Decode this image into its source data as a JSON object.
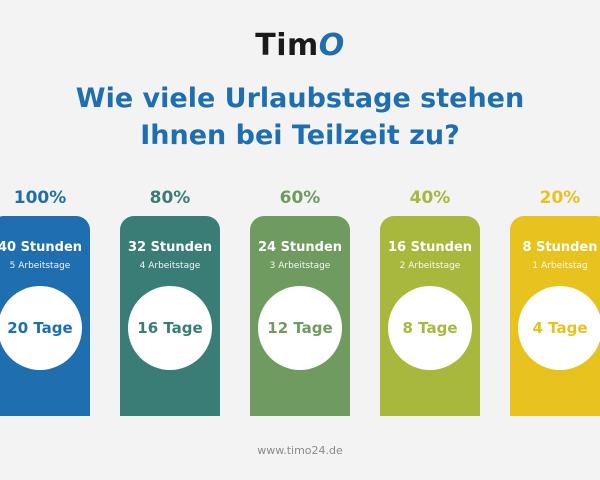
{
  "brand": {
    "logo_prefix": "Tim",
    "logo_suffix": "O"
  },
  "headline": {
    "line1": "Wie viele Urlaubstage stehen",
    "line2": "Ihnen bei Teilzeit zu?"
  },
  "colors": {
    "blue": "#1f6fb0",
    "teal": "#3a7d77",
    "olive": "#6f9b60",
    "lime": "#a8b83c",
    "yellow": "#e8c21e"
  },
  "columns": [
    {
      "percent": "100%",
      "hours": "40 Stunden",
      "workdays": "5 Arbeitstage",
      "vacation": "20 Tage",
      "color": "#1f6fb0"
    },
    {
      "percent": "80%",
      "hours": "32 Stunden",
      "workdays": "4 Arbeitstage",
      "vacation": "16 Tage",
      "color": "#3a7d77"
    },
    {
      "percent": "60%",
      "hours": "24 Stunden",
      "workdays": "3 Arbeitstage",
      "vacation": "12 Tage",
      "color": "#6f9b60"
    },
    {
      "percent": "40%",
      "hours": "16 Stunden",
      "workdays": "2 Arbeitstage",
      "vacation": "8 Tage",
      "color": "#a8b83c"
    },
    {
      "percent": "20%",
      "hours": "8 Stunden",
      "workdays": "1 Arbeitstag",
      "vacation": "4 Tage",
      "color": "#e8c21e"
    }
  ],
  "footer": {
    "url": "www.timo24.de"
  }
}
